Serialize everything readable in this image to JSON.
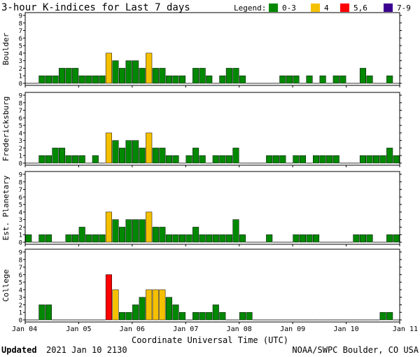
{
  "title": "3-hour K-indices for Last 7 days",
  "legend": {
    "label": "Legend:",
    "items": [
      {
        "label": "0-3",
        "color": "#008800"
      },
      {
        "label": "4",
        "color": "#f5c000"
      },
      {
        "label": "5,6",
        "color": "#ff0000"
      },
      {
        "label": "7-9",
        "color": "#3c0090"
      }
    ]
  },
  "footer": {
    "updated_label": "Updated",
    "updated_value": "2021 Jan 10 2130",
    "credit": "NOAA/SWPC Boulder, CO USA"
  },
  "chart_data": {
    "type": "bar",
    "title": "3-hour K-indices for Last 7 days",
    "xlabel": "Coordinate Universal Time (UTC)",
    "x_ticks": [
      "Jan 04",
      "Jan 05",
      "Jan 06",
      "Jan 07",
      "Jan 08",
      "Jan 09",
      "Jan 10",
      "Jan 11"
    ],
    "y_ticks": [
      "0",
      "1",
      "2",
      "3",
      "4",
      "5",
      "6",
      "7",
      "8",
      "9"
    ],
    "ylim": [
      0,
      9
    ],
    "bins_per_day": 8,
    "days": 7,
    "series": [
      {
        "name": "Boulder",
        "values": [
          0,
          0,
          1,
          1,
          1,
          2,
          2,
          2,
          1,
          1,
          1,
          1,
          4,
          3,
          2,
          3,
          3,
          2,
          4,
          2,
          2,
          1,
          1,
          1,
          0,
          2,
          2,
          1,
          0,
          1,
          2,
          2,
          1,
          0,
          0,
          0,
          0,
          0,
          1,
          1,
          1,
          0,
          1,
          0,
          1,
          0,
          1,
          1,
          0,
          0,
          2,
          1,
          0,
          0,
          1,
          0
        ]
      },
      {
        "name": "Fredericksburg",
        "values": [
          0,
          0,
          1,
          1,
          2,
          2,
          1,
          1,
          1,
          0,
          1,
          0,
          4,
          3,
          2,
          3,
          3,
          2,
          4,
          2,
          2,
          1,
          1,
          0,
          1,
          2,
          1,
          0,
          1,
          1,
          1,
          2,
          0,
          0,
          0,
          0,
          1,
          1,
          1,
          0,
          1,
          1,
          0,
          1,
          1,
          1,
          1,
          0,
          0,
          0,
          1,
          1,
          1,
          1,
          2,
          1
        ]
      },
      {
        "name": "Est. Planetary",
        "values": [
          1,
          0,
          1,
          1,
          0,
          0,
          1,
          1,
          2,
          1,
          1,
          1,
          4,
          3,
          2,
          3,
          3,
          3,
          4,
          2,
          2,
          1,
          1,
          1,
          1,
          2,
          1,
          1,
          1,
          1,
          1,
          3,
          1,
          0,
          0,
          0,
          1,
          0,
          0,
          0,
          1,
          1,
          1,
          1,
          0,
          0,
          0,
          0,
          0,
          1,
          1,
          1,
          0,
          0,
          1,
          1
        ]
      },
      {
        "name": "College",
        "values": [
          0,
          0,
          2,
          2,
          0,
          0,
          0,
          0,
          0,
          0,
          0,
          0,
          6,
          4,
          1,
          1,
          2,
          3,
          4,
          4,
          4,
          3,
          2,
          1,
          0,
          1,
          1,
          1,
          2,
          1,
          0,
          0,
          1,
          1,
          0,
          0,
          0,
          0,
          0,
          0,
          0,
          0,
          0,
          0,
          0,
          0,
          0,
          0,
          0,
          0,
          0,
          0,
          0,
          1,
          1,
          0
        ]
      }
    ]
  }
}
